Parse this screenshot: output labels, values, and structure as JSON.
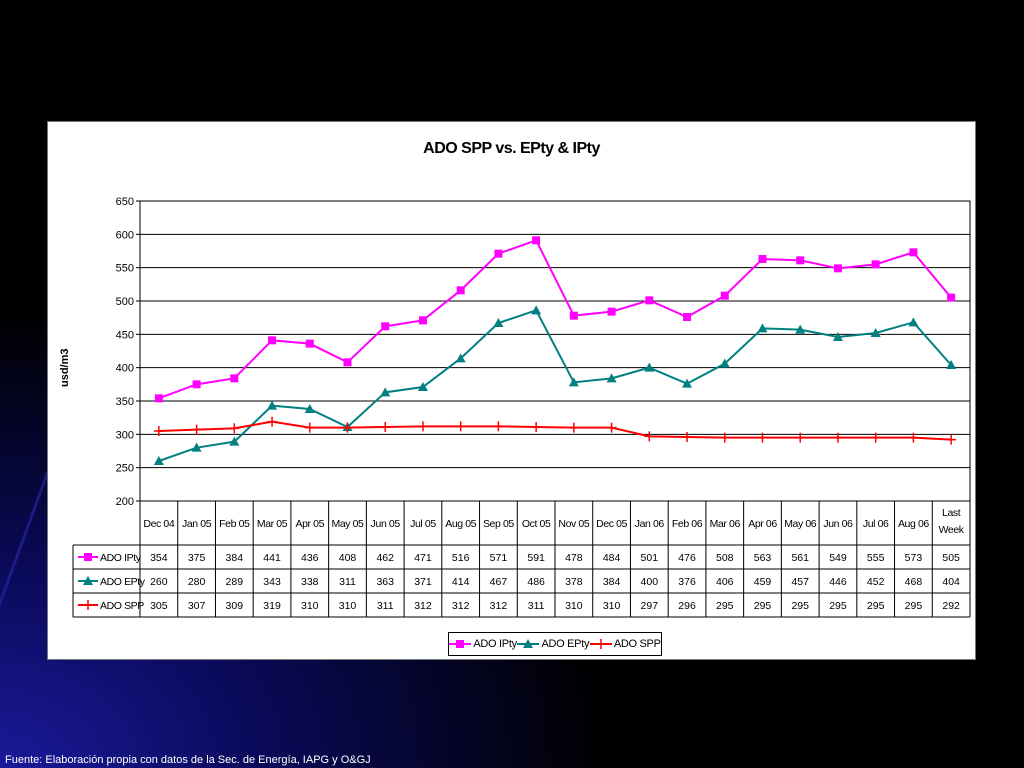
{
  "chart_data": {
    "type": "line",
    "title": "ADO SPP vs. EPty & IPty",
    "ylabel": "usd/m3",
    "xlabel": "",
    "ylim": [
      200,
      650
    ],
    "yticks": [
      200,
      250,
      300,
      350,
      400,
      450,
      500,
      550,
      600,
      650
    ],
    "grid": true,
    "legend_position": "bottom",
    "categories": [
      "Dec 04",
      "Jan 05",
      "Feb 05",
      "Mar 05",
      "Apr 05",
      "May 05",
      "Jun 05",
      "Jul 05",
      "Aug 05",
      "Sep 05",
      "Oct 05",
      "Nov 05",
      "Dec 05",
      "Jan 06",
      "Feb 06",
      "Mar 06",
      "Apr 06",
      "May 06",
      "Jun 06",
      "Jul 06",
      "Aug 06",
      "Last Week"
    ],
    "series": [
      {
        "name": "ADO IPty",
        "color": "#ff00ff",
        "marker": "square",
        "values": [
          354,
          375,
          384,
          441,
          436,
          408,
          462,
          471,
          516,
          571,
          591,
          478,
          484,
          501,
          476,
          508,
          563,
          561,
          549,
          555,
          573,
          505
        ]
      },
      {
        "name": "ADO EPty",
        "color": "#008080",
        "marker": "triangle",
        "values": [
          260,
          280,
          289,
          343,
          338,
          311,
          363,
          371,
          414,
          467,
          486,
          378,
          384,
          400,
          376,
          406,
          459,
          457,
          446,
          452,
          468,
          404
        ]
      },
      {
        "name": "ADO SPP",
        "color": "#ff0000",
        "marker": "plus",
        "values": [
          305,
          307,
          309,
          319,
          310,
          310,
          311,
          312,
          312,
          312,
          311,
          310,
          310,
          297,
          296,
          295,
          295,
          295,
          295,
          295,
          295,
          292
        ]
      }
    ]
  },
  "footer": {
    "source": "Fuente: Elaboración propia con datos de la Sec. de Energía, IAPG y O&GJ"
  }
}
